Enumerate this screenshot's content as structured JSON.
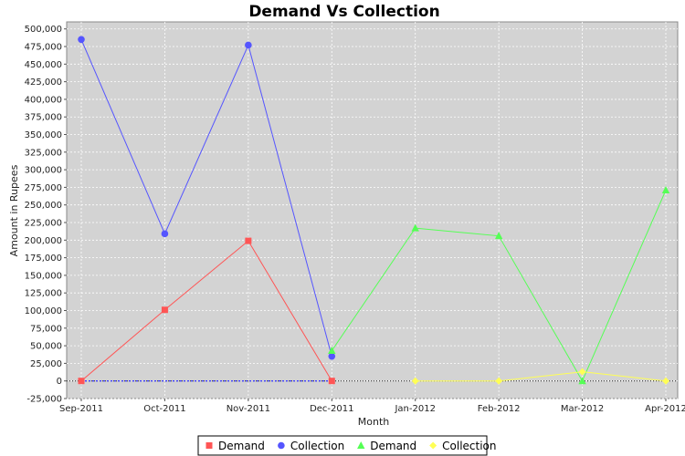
{
  "chart_data": {
    "type": "line",
    "title": "Demand Vs Collection",
    "xlabel": "Month",
    "ylabel": "Amount in Rupees",
    "categories": [
      "Sep-2011",
      "Oct-2011",
      "Nov-2011",
      "Dec-2011",
      "Jan-2012",
      "Feb-2012",
      "Mar-2012",
      "Apr-2012"
    ],
    "ylim": [
      -25000,
      510000
    ],
    "yticks": [
      -25000,
      0,
      25000,
      50000,
      75000,
      100000,
      125000,
      150000,
      175000,
      200000,
      225000,
      250000,
      275000,
      300000,
      325000,
      350000,
      375000,
      400000,
      425000,
      450000,
      475000,
      500000
    ],
    "ytick_labels": [
      "-25,000",
      "0",
      "25,000",
      "50,000",
      "75,000",
      "100,000",
      "125,000",
      "150,000",
      "175,000",
      "200,000",
      "225,000",
      "250,000",
      "275,000",
      "300,000",
      "325,000",
      "350,000",
      "375,000",
      "400,000",
      "425,000",
      "450,000",
      "475,000",
      "500,000"
    ],
    "grid": true,
    "background": "#d3d3d3",
    "legend_position": "bottom",
    "series": [
      {
        "name": "Demand",
        "marker": "square",
        "color": "#ff5555",
        "values": [
          0,
          101000,
          199000,
          0,
          null,
          null,
          null,
          null
        ]
      },
      {
        "name": "Collection",
        "marker": "circle",
        "color": "#5555ff",
        "values": [
          485000,
          209000,
          477000,
          35000,
          null,
          null,
          null,
          null
        ]
      },
      {
        "name": "Demand",
        "marker": "triangle",
        "color": "#55ff55",
        "values": [
          null,
          null,
          null,
          43000,
          217000,
          206000,
          0,
          271000
        ]
      },
      {
        "name": "Collection",
        "marker": "diamond",
        "color": "#ffff55",
        "values": [
          null,
          null,
          null,
          null,
          0,
          0,
          13000,
          0
        ]
      }
    ]
  }
}
